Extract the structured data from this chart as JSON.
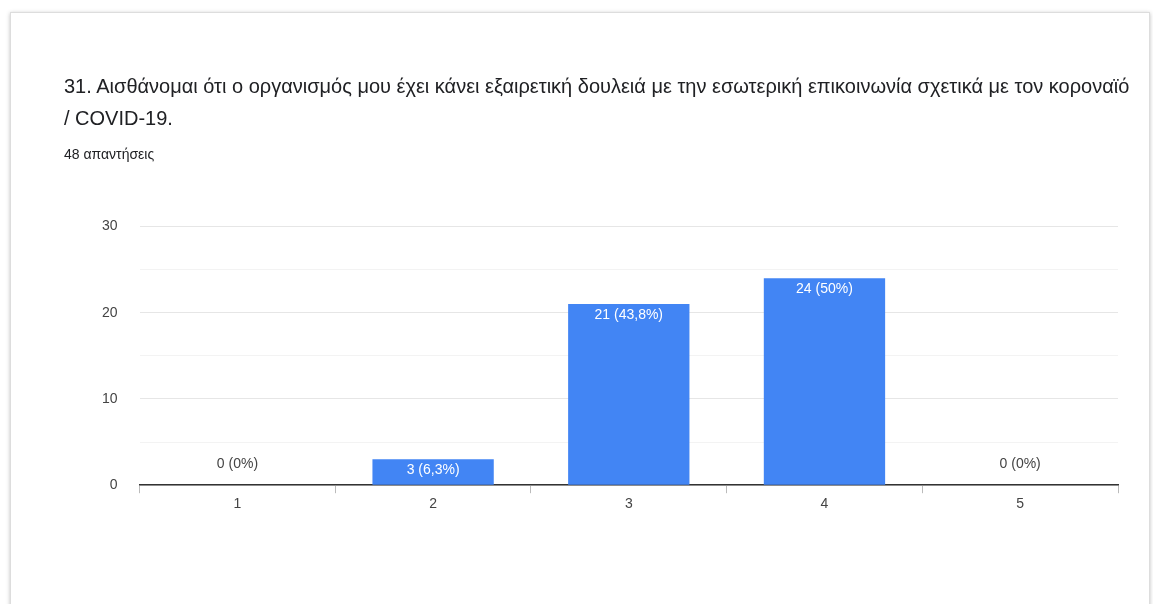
{
  "chart_data": {
    "type": "bar",
    "title": "31. Αισθάνομαι ότι ο οργανισμός μου έχει κάνει εξαιρετική δουλειά με την εσωτερική επικοινωνία σχετικά με τον κοροναϊό / COVID-19.",
    "subtitle": "48 απαντήσεις",
    "categories": [
      "1",
      "2",
      "3",
      "4",
      "5"
    ],
    "values": [
      0,
      3,
      21,
      24,
      0
    ],
    "value_labels": [
      "0 (0%)",
      "3 (6,3%)",
      "21 (43,8%)",
      "24 (50%)",
      "0 (0%)"
    ],
    "color": "#4285f4",
    "ylim": [
      0,
      30
    ],
    "yticks": [
      0,
      {
        "value": 5,
        "label": null
      },
      10,
      {
        "value": 15,
        "label": null
      },
      20,
      {
        "value": 25,
        "label": null
      },
      30
    ],
    "grid": true,
    "legend": false
  }
}
